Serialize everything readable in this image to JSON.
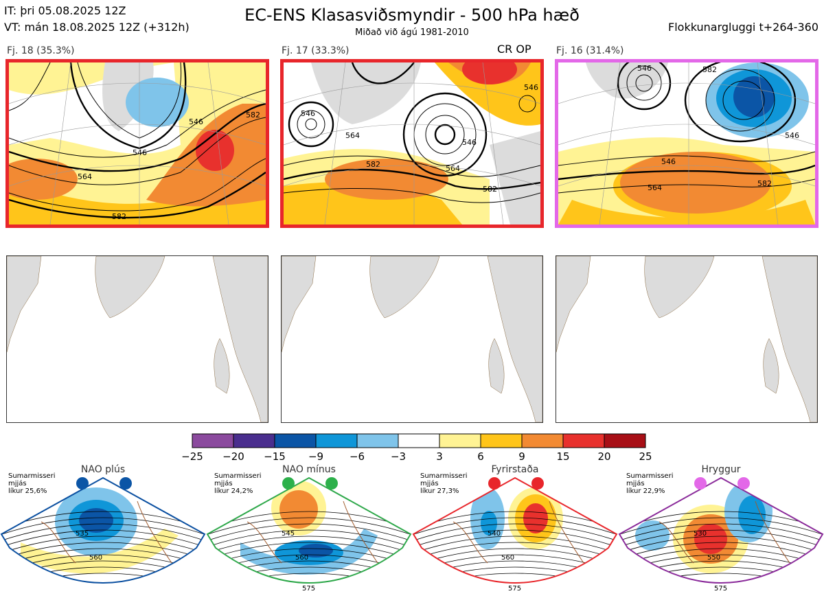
{
  "header": {
    "it": "IT: þri 05.08.2025 12Z",
    "vt": "VT: mán 18.08.2025 12Z  (+312h)",
    "title": "EC-ENS Klasasviðsmyndir - 500 hPa hæð",
    "subtitle": "Miðað við ágú 1981-2010",
    "window": "Flokkunargluggi t+264-360"
  },
  "colors": {
    "red": "#e8262b",
    "magenta": "#e368e8",
    "blue_frame": "#0a4fa0",
    "green_frame": "#2ea84a",
    "purple_frame": "#8a2a9a"
  },
  "clusters": [
    {
      "label": "Fj. 18 (35.3%)",
      "extra": "",
      "frame": "#e8262b",
      "contours": [
        "546",
        "564",
        "582",
        "546",
        "582"
      ]
    },
    {
      "label": "Fj. 17 (33.3%)",
      "extra": "CR OP",
      "frame": "#e8262b",
      "contours": [
        "546",
        "564",
        "582",
        "546",
        "564",
        "582",
        "546"
      ]
    },
    {
      "label": "Fj. 16 (31.4%)",
      "extra": "",
      "frame": "#e368e8",
      "contours": [
        "546",
        "564",
        "582",
        "582",
        "546",
        "546"
      ]
    }
  ],
  "colorbar": {
    "ticks": [
      "−25",
      "−20",
      "−15",
      "−9",
      "−6",
      "−3",
      "3",
      "6",
      "9",
      "15",
      "20",
      "25"
    ],
    "colors": [
      "#8b4a9e",
      "#4a2e8e",
      "#0b55a6",
      "#0f96d8",
      "#7fc4ea",
      "#ffffff",
      "#fff394",
      "#ffc51a",
      "#f28a33",
      "#e8312d",
      "#a80f16"
    ]
  },
  "regimes": [
    {
      "name": "NAO plús",
      "season": "Sumarmisseri",
      "type": "mjjás",
      "prob": "líkur 25,6%",
      "dot": "#0b55a6",
      "frame": "#0a4fa0",
      "labels": [
        "535",
        "560"
      ]
    },
    {
      "name": "NAO mínus",
      "season": "Sumarmisseri",
      "type": "mjjás",
      "prob": "líkur 24,2%",
      "dot": "#2db04b",
      "frame": "#2ea84a",
      "labels": [
        "545",
        "560",
        "575"
      ]
    },
    {
      "name": "Fyrirstaða",
      "season": "Sumarmisseri",
      "type": "mjjás",
      "prob": "líkur 27,3%",
      "dot": "#e8262b",
      "frame": "#e8262b",
      "labels": [
        "540",
        "560",
        "575"
      ]
    },
    {
      "name": "Hryggur",
      "season": "Sumarmisseri",
      "type": "mjjás",
      "prob": "líkur 22,9%",
      "dot": "#e368e8",
      "frame": "#8a2a9a",
      "labels": [
        "530",
        "550",
        "575"
      ]
    }
  ]
}
